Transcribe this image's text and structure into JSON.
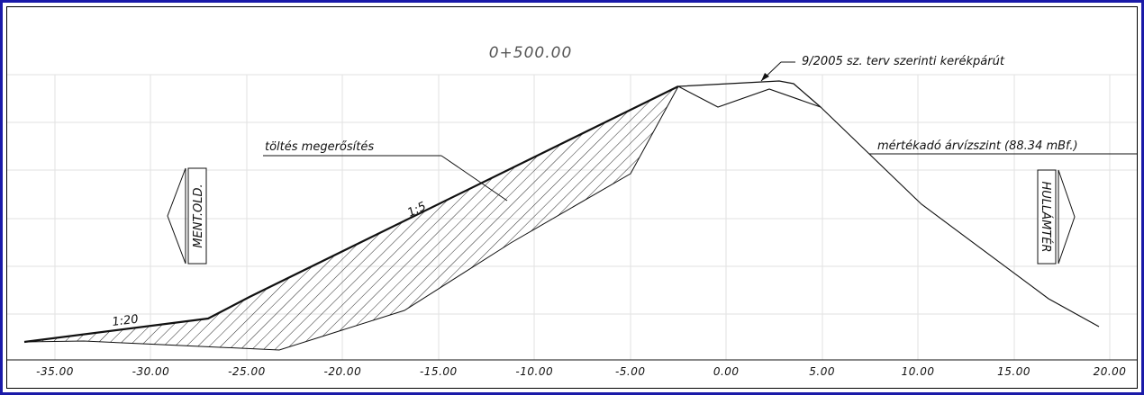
{
  "title": "0+500.00",
  "labels": {
    "bike_path": "9/2005 sz. terv szerinti kerékpárút",
    "embankment": "töltés megerősítés",
    "flood_level": "mértékadó árvízszint (88.34 mBf.)",
    "slope_upper": "1:5",
    "slope_lower": "1:20",
    "protected_side": "MENT.OLD.",
    "floodplain": "HULLÁMTÉR"
  },
  "colors": {
    "frame": "#1a1aa8",
    "grid": "#e2e2e2",
    "line": "#111111",
    "title": "#555555"
  },
  "x_axis": {
    "ticks": [
      -35,
      -30,
      -25,
      -20,
      -15,
      -10,
      -5,
      0,
      5,
      10,
      15,
      20
    ],
    "tick_labels": [
      "-35.00",
      "-30.00",
      "-25.00",
      "-20.00",
      "-15.00",
      "-10.00",
      "-5.00",
      "0.00",
      "5.00",
      "10.00",
      "15.00",
      "20.00"
    ]
  }
}
